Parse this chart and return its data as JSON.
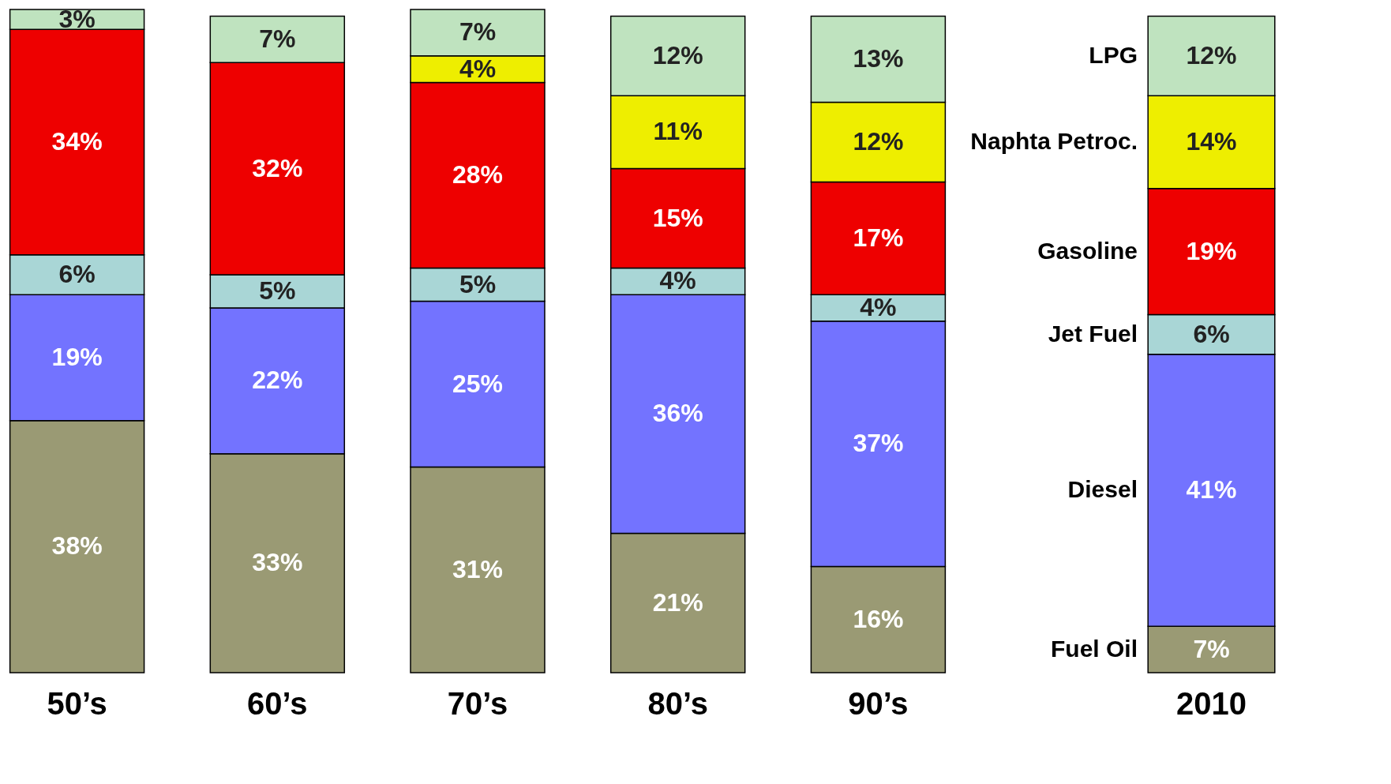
{
  "chart_data": {
    "type": "bar",
    "stacked": true,
    "categories": [
      "50’s",
      "60’s",
      "70’s",
      "80’s",
      "90’s",
      "2010"
    ],
    "series": [
      {
        "name": "Fuel Oil",
        "color": "#9a9a74",
        "values": [
          38,
          33,
          31,
          21,
          16,
          7
        ],
        "value_labels": [
          "38%",
          "33%",
          "31%",
          "21%",
          "16%",
          "7%"
        ]
      },
      {
        "name": "Diesel",
        "color": "#7373ff",
        "values": [
          19,
          22,
          25,
          36,
          37,
          41
        ],
        "value_labels": [
          "19%",
          "22%",
          "25%",
          "36%",
          "37%",
          "41%"
        ]
      },
      {
        "name": "Jet Fuel",
        "color": "#a9d6d6",
        "values": [
          6,
          5,
          5,
          4,
          4,
          6
        ],
        "value_labels": [
          "6%",
          "5%",
          "5%",
          "4%",
          "4%",
          "6%"
        ]
      },
      {
        "name": "Gasoline",
        "color": "#ee0000",
        "values": [
          34,
          32,
          28,
          15,
          17,
          19
        ],
        "value_labels": [
          "34%",
          "32%",
          "28%",
          "15%",
          "17%",
          "19%"
        ]
      },
      {
        "name": "Naphta Petroc.",
        "color": "#eeee00",
        "values": [
          null,
          null,
          4,
          11,
          12,
          14
        ],
        "value_labels": [
          null,
          null,
          "4%",
          "11%",
          "12%",
          "14%"
        ]
      },
      {
        "name": "LPG",
        "color": "#bfe3bf",
        "values": [
          3,
          7,
          7,
          12,
          13,
          12
        ],
        "value_labels": [
          "3%",
          "7%",
          "7%",
          "12%",
          "13%",
          "12%"
        ]
      }
    ]
  }
}
